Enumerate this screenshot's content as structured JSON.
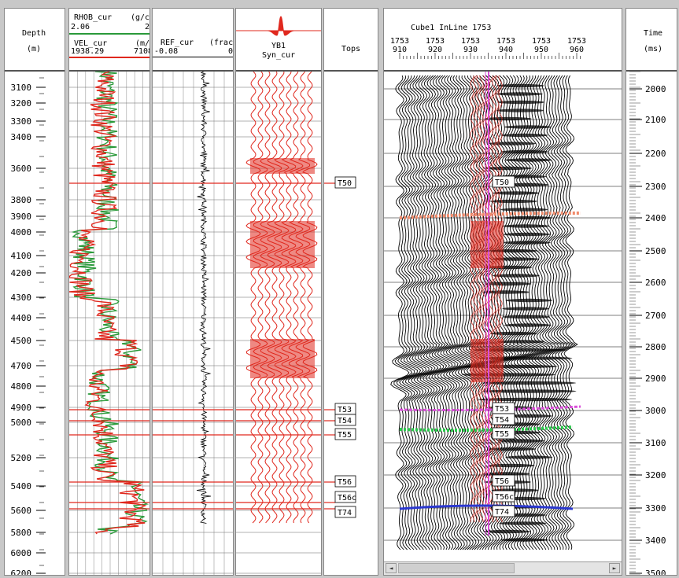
{
  "depth_track": {
    "title": "Depth",
    "unit": "(m)",
    "labels": [
      "3100",
      "3200",
      "3300",
      "3400",
      "3600",
      "3800",
      "3900",
      "4000",
      "4100",
      "4200",
      "4300",
      "4400",
      "4500",
      "4700",
      "4800",
      "4900",
      "5000",
      "5200",
      "5400",
      "5600",
      "5800",
      "6000",
      "6200"
    ]
  },
  "log_track": {
    "curve1_name": "RHOB_cur",
    "curve1_unit": "(g/c",
    "curve1_min": "2.06",
    "curve1_max": "2",
    "curve2_name": "VEL_cur",
    "curve2_unit": "(m/",
    "curve2_min": "1938.29",
    "curve2_max": "7108",
    "curve1_color": "#2a9a3a",
    "curve2_color": "#e0281e"
  },
  "ref_track": {
    "name": "REF_cur",
    "unit": "(frac",
    "min": "-0.08",
    "max": "0"
  },
  "syn_track": {
    "well": "YB1",
    "name": "Syn_cur",
    "wavelet_color": "#e0281e"
  },
  "tops_track": {
    "title": "Tops",
    "tops": [
      "T50",
      "T53",
      "T54",
      "T55",
      "T56",
      "T56c",
      "T74"
    ]
  },
  "seismic": {
    "title": "Cube1  InLine 1753",
    "ticks_top": [
      "1753",
      "1753",
      "1753",
      "1753",
      "1753",
      "1753"
    ],
    "ticks_bottom": [
      "910",
      "920",
      "930",
      "940",
      "950",
      "960"
    ],
    "tops": [
      "T50",
      "T53",
      "T54",
      "T55",
      "T56",
      "T56c",
      "T74"
    ],
    "horizon_colors": {
      "orange": "#f08a6a",
      "magenta": "#d94fd9",
      "green": "#29c84a",
      "blue": "#2b38d0"
    }
  },
  "time_track": {
    "title": "Time",
    "unit": "(ms)",
    "labels": [
      "2000",
      "2100",
      "2200",
      "2300",
      "2400",
      "2500",
      "2600",
      "2700",
      "2800",
      "2900",
      "3000",
      "3100",
      "3200",
      "3300",
      "3400",
      "3500"
    ]
  },
  "scrollbar": {
    "left_arrow": "◄",
    "right_arrow": "►"
  }
}
